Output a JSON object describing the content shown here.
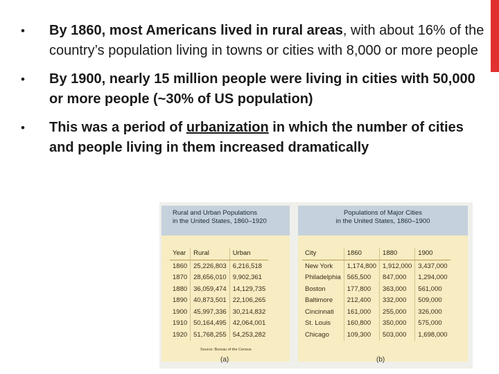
{
  "slide": {
    "bullet_symbol": "•",
    "accent_color": "#e0312f",
    "bullets": [
      {
        "segments": [
          {
            "text": "By 1860, most Americans lived in rural areas",
            "style": "bold"
          },
          {
            "text": ", with about 16% of the country’s population living in towns or cities with 8,000 or more people",
            "style": "normal"
          }
        ]
      },
      {
        "segments": [
          {
            "text": "By 1900, nearly 15 million people were living in cities with 50,000 or more people (~30% of US population)",
            "style": "bold"
          }
        ]
      },
      {
        "segments": [
          {
            "text": "This was a period of ",
            "style": "bold"
          },
          {
            "text": "urbanization",
            "style": "bold-underline"
          },
          {
            "text": " in which the number of cities and people living in them increased dramatically",
            "style": "bold"
          }
        ]
      }
    ]
  },
  "table_a": {
    "title_line1": "Rural and Urban Populations",
    "title_line2": "in the United States, 1860–1920",
    "headers": [
      "Year",
      "Rural",
      "Urban"
    ],
    "rows": [
      [
        "1860",
        "25,226,803",
        "6,216,518"
      ],
      [
        "1870",
        "28,656,010",
        "9,902,361"
      ],
      [
        "1880",
        "36,059,474",
        "14,129,735"
      ],
      [
        "1890",
        "40,873,501",
        "22,106,265"
      ],
      [
        "1900",
        "45,997,336",
        "30,214,832"
      ],
      [
        "1910",
        "50,164,495",
        "42,064,001"
      ],
      [
        "1920",
        "51,768,255",
        "54,253,282"
      ]
    ],
    "source": "Source: Bureau of the Census",
    "label": "(a)"
  },
  "table_b": {
    "title_line1": "Populations of Major Cities",
    "title_line2": "in the United States, 1860–1900",
    "headers": [
      "City",
      "1860",
      "1880",
      "1900"
    ],
    "rows": [
      [
        "New York",
        "1,174,800",
        "1,912,000",
        "3,437,000"
      ],
      [
        "Philadelphia",
        "565,500",
        "847,000",
        "1,294,000"
      ],
      [
        "Boston",
        "177,800",
        "363,000",
        "561,000"
      ],
      [
        "Baltimore",
        "212,400",
        "332,000",
        "509,000"
      ],
      [
        "Cincinnati",
        "161,000",
        "255,000",
        "326,000"
      ],
      [
        "St. Louis",
        "160,800",
        "350,000",
        "575,000"
      ],
      [
        "Chicago",
        "109,300",
        "503,000",
        "1,698,000"
      ]
    ],
    "label": "(b)"
  }
}
